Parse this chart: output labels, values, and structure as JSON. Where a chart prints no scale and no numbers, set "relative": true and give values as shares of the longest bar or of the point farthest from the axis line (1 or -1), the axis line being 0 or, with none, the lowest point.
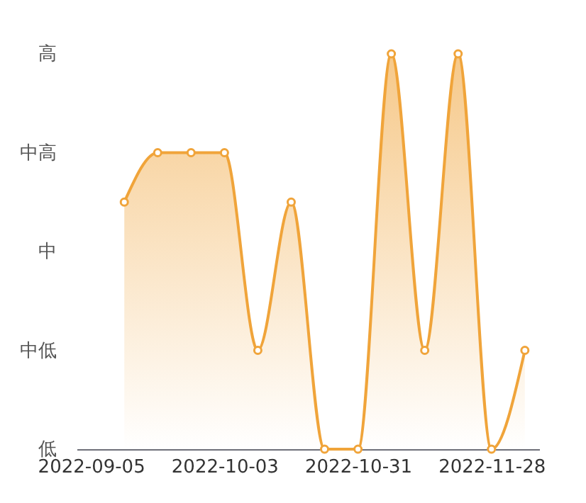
{
  "chart_data": {
    "type": "area",
    "relative": true,
    "x": [
      "2022-09-12",
      "2022-09-19",
      "2022-09-26",
      "2022-10-03",
      "2022-10-10",
      "2022-10-17",
      "2022-10-24",
      "2022-10-31",
      "2022-11-07",
      "2022-11-14",
      "2022-11-21",
      "2022-11-28",
      "2022-12-05"
    ],
    "series": [
      {
        "color": "#f0a43a",
        "values": [
          0.625,
          0.75,
          0.75,
          0.75,
          0.25,
          0.625,
          0,
          0,
          1,
          0.25,
          1,
          0,
          0.25
        ]
      }
    ],
    "xlim": [
      "2022-09-02",
      "2022-12-08"
    ],
    "xticks": [
      "2022-09-05",
      "2022-10-03",
      "2022-10-31",
      "2022-11-28"
    ],
    "annotations": [
      "高",
      "中高",
      "中",
      "中低",
      "低"
    ],
    "grid": false,
    "marker": "circle",
    "line_style": "solid"
  }
}
